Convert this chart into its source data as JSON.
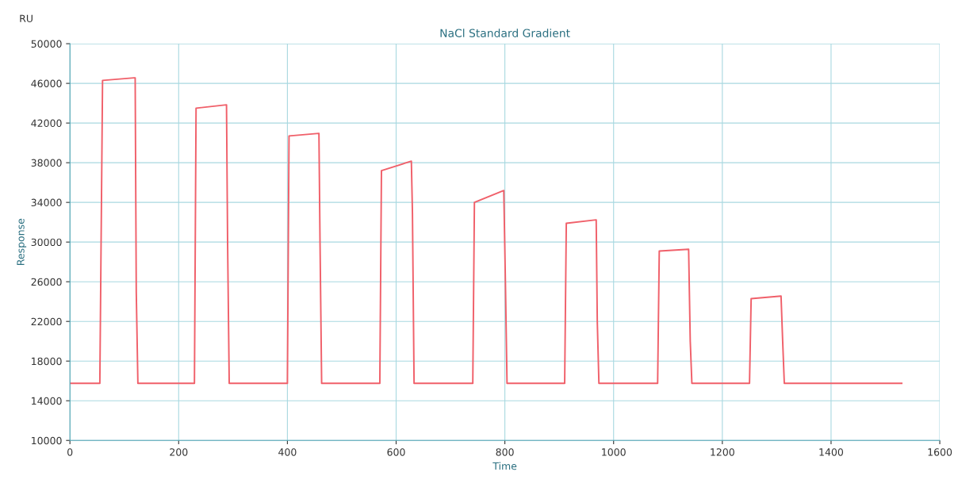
{
  "chart_data": {
    "type": "line",
    "title": "NaCl Standard Gradient",
    "xlabel": "Time",
    "ylabel": "Response",
    "annotations": [
      "RU"
    ],
    "series": [
      {
        "color": "#f0606a",
        "x": [
          0,
          55,
          57,
          60,
          118,
          120,
          122,
          125,
          225,
          229,
          232,
          288,
          290,
          293,
          396,
          400,
          403,
          458,
          460,
          463,
          568,
          570,
          573,
          628,
          630,
          633,
          738,
          741,
          744,
          798,
          801,
          804,
          906,
          910,
          913,
          968,
          970,
          973,
          1078,
          1081,
          1084,
          1138,
          1141,
          1144,
          1246,
          1250,
          1253,
          1308,
          1311,
          1314,
          1530
        ],
        "values": [
          15760,
          15760,
          28000,
          46300,
          46560,
          46560,
          25000,
          15760,
          15760,
          15760,
          43500,
          43840,
          30000,
          15760,
          15760,
          15760,
          40700,
          40960,
          30000,
          15760,
          15760,
          15760,
          37200,
          38160,
          33000,
          15760,
          15760,
          15760,
          34000,
          35200,
          26000,
          15760,
          15760,
          15760,
          31900,
          32240,
          22000,
          15760,
          15760,
          15760,
          29100,
          29280,
          20000,
          15760,
          15760,
          15760,
          24300,
          24560,
          20000,
          15760,
          15760
        ]
      }
    ],
    "xlim": [
      0,
      1600
    ],
    "xticks": [
      0,
      200,
      400,
      600,
      800,
      1000,
      1200,
      1400,
      1600
    ],
    "ylim": [
      10000,
      50000
    ],
    "yticks": [
      10000,
      14000,
      18000,
      22000,
      26000,
      30000,
      34000,
      38000,
      42000,
      46000,
      50000
    ],
    "grid": true,
    "marker": "none",
    "line_style": "solid"
  }
}
